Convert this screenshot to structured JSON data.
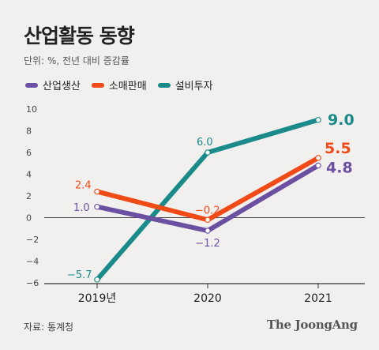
{
  "header": {
    "title": "산업활동 동향",
    "subtitle": "단위: %, 전년 대비 증감률"
  },
  "footer": {
    "source": "자료: 통계청",
    "brand": "The JoongAng"
  },
  "chart_data": {
    "type": "line",
    "title": "산업활동 동향",
    "subtitle": "단위: %, 전년 대비 증감률",
    "xlabel": "",
    "ylabel": "",
    "x": [
      "2019년",
      "2020",
      "2021"
    ],
    "ylim": [
      -6,
      10
    ],
    "yticks": [
      10,
      8,
      6,
      4,
      2,
      0,
      -2,
      -4,
      -6
    ],
    "ytick_labels": [
      "10",
      "8",
      "6",
      "4",
      "2",
      "0",
      "−2",
      "−4",
      "−6"
    ],
    "grid": false,
    "legend_position": "top-left",
    "series": [
      {
        "name": "산업생산",
        "color": "#6b4fa1",
        "values": [
          1.0,
          -1.2,
          4.8
        ],
        "labels": [
          "1.0",
          "−1.2",
          "4.8"
        ]
      },
      {
        "name": "소매판매",
        "color": "#f04a17",
        "values": [
          2.4,
          -0.2,
          5.5
        ],
        "labels": [
          "2.4",
          "−0.2",
          "5.5"
        ]
      },
      {
        "name": "설비투자",
        "color": "#1a8a8b",
        "values": [
          -5.7,
          6.0,
          9.0
        ],
        "labels": [
          "−5.7",
          "6.0",
          "9.0"
        ]
      }
    ]
  }
}
